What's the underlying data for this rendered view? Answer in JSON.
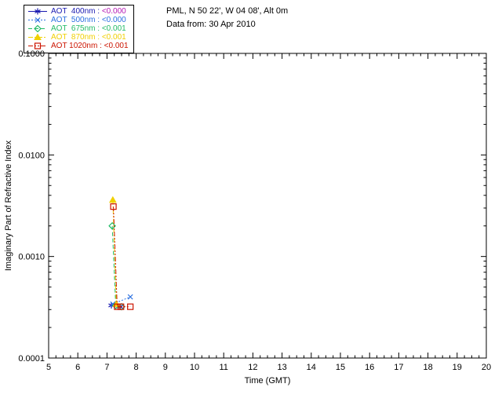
{
  "header": {
    "line1": "PML, N 50 22', W 04 08', Alt 0m",
    "line2": "Data from: 30 Apr 2010"
  },
  "chart_data": {
    "type": "line",
    "title": "",
    "xlabel": "Time (GMT)",
    "ylabel": "Imaginary Part of Refractive Index",
    "xlim": [
      5,
      20
    ],
    "ylim": [
      0.0001,
      0.1
    ],
    "y_scale": "log",
    "grid": false,
    "legend_position": "top-left-outside",
    "xticks": [
      5,
      6,
      7,
      8,
      9,
      10,
      11,
      12,
      13,
      14,
      15,
      16,
      17,
      18,
      19,
      20
    ],
    "yticks": [
      0.0001,
      0.001,
      0.01,
      0.1
    ],
    "ytick_labels": [
      "0.0001",
      "0.0010",
      "0.0100",
      "0.1000"
    ],
    "axis_color": "#000000",
    "background_color": "#ffffff",
    "series": [
      {
        "name": "AOT  400nm",
        "legend_value": "<0.000",
        "color": "#1818b0",
        "value_color": "#b518b5",
        "marker": "asterisk",
        "dash": "",
        "points": [
          [
            7.15,
            0.00033
          ],
          [
            7.45,
            0.00032
          ]
        ]
      },
      {
        "name": "AOT  500nm",
        "legend_value": "<0.000",
        "color": "#2a6fe0",
        "value_color": "#2a6fe0",
        "marker": "cross",
        "dash": "2,2",
        "points": [
          [
            7.2,
            0.00034
          ],
          [
            7.8,
            0.0004
          ]
        ]
      },
      {
        "name": "AOT  675nm",
        "legend_value": "<0.001",
        "color": "#22bb66",
        "value_color": "#22bb66",
        "marker": "diamond",
        "dash": "5,3",
        "points": [
          [
            7.18,
            0.002
          ],
          [
            7.3,
            0.00033
          ],
          [
            7.5,
            0.00032
          ]
        ]
      },
      {
        "name": "AOT  870nm",
        "legend_value": "<0.001",
        "color": "#f0d000",
        "value_color": "#f0d000",
        "marker": "triangle",
        "dash": "6,2,2,2",
        "points": [
          [
            7.2,
            0.0036
          ],
          [
            7.32,
            0.00034
          ]
        ]
      },
      {
        "name": "AOT 1020nm",
        "legend_value": "<0.001",
        "color": "#cc1400",
        "value_color": "#cc1400",
        "marker": "square",
        "dash": "6,2,2,2,2,2",
        "points": [
          [
            7.22,
            0.0031
          ],
          [
            7.35,
            0.00032
          ],
          [
            7.48,
            0.00032
          ],
          [
            7.8,
            0.00032
          ]
        ]
      }
    ]
  }
}
